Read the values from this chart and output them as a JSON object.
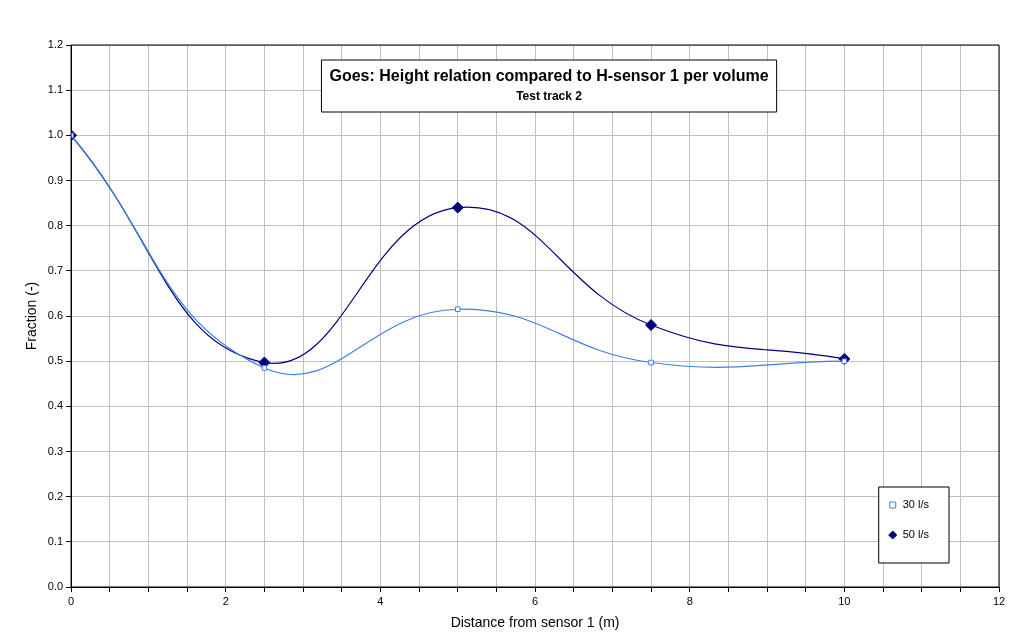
{
  "chart_data": {
    "type": "line",
    "title": "Goes: Height relation compared to H-sensor 1 per volume",
    "subtitle": "Test track 2",
    "xlabel": "Distance from sensor 1 (m)",
    "ylabel": "Fraction (-)",
    "series": [
      {
        "name": "30 l/s",
        "color": "#3f7fe0",
        "marker": "square",
        "x": [
          0,
          2.5,
          5,
          7.5,
          10
        ],
        "values": [
          1.0,
          0.485,
          0.615,
          0.497,
          0.5
        ]
      },
      {
        "name": "50 l/s",
        "color": "#000080",
        "marker": "diamond",
        "x": [
          0,
          2.5,
          5,
          7.5,
          10
        ],
        "values": [
          1.0,
          0.497,
          0.84,
          0.58,
          0.505
        ]
      }
    ],
    "xlim": [
      0,
      12
    ],
    "xticks": [
      0,
      {
        "value": 0.5,
        "label": null
      },
      {
        "value": 1,
        "label": null
      },
      {
        "value": 1.5,
        "label": null
      },
      2,
      {
        "value": 2.5,
        "label": null
      },
      {
        "value": 3,
        "label": null
      },
      {
        "value": 3.5,
        "label": null
      },
      4,
      {
        "value": 4.5,
        "label": null
      },
      {
        "value": 5,
        "label": null
      },
      {
        "value": 5.5,
        "label": null
      },
      6,
      {
        "value": 6.5,
        "label": null
      },
      {
        "value": 7,
        "label": null
      },
      {
        "value": 7.5,
        "label": null
      },
      8,
      {
        "value": 8.5,
        "label": null
      },
      {
        "value": 9,
        "label": null
      },
      {
        "value": 9.5,
        "label": null
      },
      10,
      {
        "value": 10.5,
        "label": null
      },
      {
        "value": 11,
        "label": null
      },
      {
        "value": 11.5,
        "label": null
      },
      12
    ],
    "ylim": [
      0,
      1.2
    ],
    "yticks": [
      {
        "value": 0,
        "label": "0.0"
      },
      0.1,
      0.2,
      0.3,
      0.4,
      0.5,
      0.6,
      0.7,
      0.8,
      0.9,
      {
        "value": 1,
        "label": "1.0"
      },
      1.1,
      1.2
    ],
    "grid": true,
    "legend": "bottom right",
    "line_style": "solid"
  }
}
